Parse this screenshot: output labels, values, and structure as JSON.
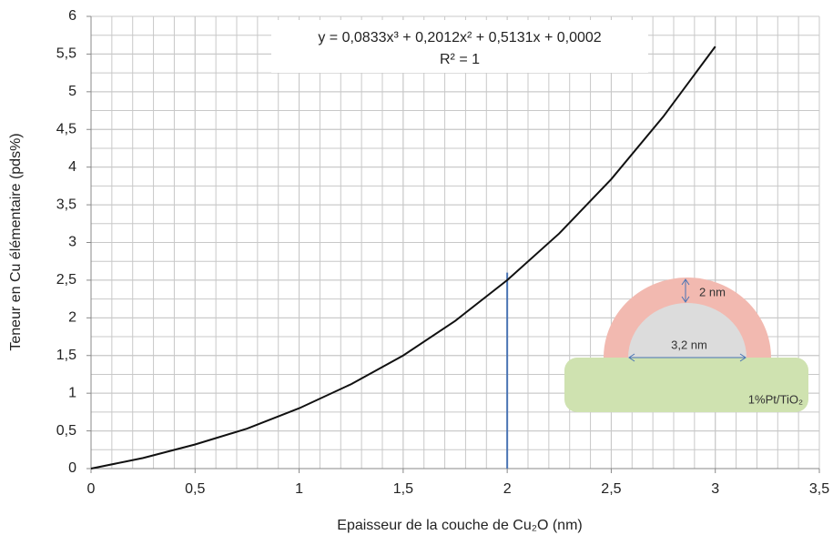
{
  "chart_data": {
    "type": "line",
    "xlabel": "Epaisseur de la couche de Cu₂O (nm)",
    "ylabel": "Teneur en Cu élémentaire (pds%)",
    "annotations": [
      "y = 0,0833x³ + 0,2012x² + 0,5131x + 0,0002",
      "R² = 1"
    ],
    "x": [
      0,
      0.25,
      0.5,
      0.75,
      1,
      1.25,
      1.5,
      1.75,
      2,
      2.25,
      2.5,
      2.75,
      3
    ],
    "series": [
      {
        "color": "#111111",
        "values": [
          0,
          0.14,
          0.32,
          0.53,
          0.8,
          1.12,
          1.5,
          1.96,
          2.5,
          3.12,
          3.84,
          4.67,
          5.6
        ]
      }
    ],
    "markers": [
      {
        "color": "#4a74b4",
        "x": [
          2,
          2
        ],
        "y": [
          0,
          2.6
        ]
      }
    ],
    "xlim": [
      0,
      3.5
    ],
    "ylim": [
      0,
      6
    ],
    "xticks": [
      0,
      {
        "value": 0.5,
        "label": "0,5"
      },
      1,
      {
        "value": 1.5,
        "label": "1,5"
      },
      2,
      {
        "value": 2.5,
        "label": "2,5"
      },
      3,
      {
        "value": 3.5,
        "label": "3,5"
      }
    ],
    "yticks": [
      0,
      {
        "value": 0.5,
        "label": "0,5"
      },
      1,
      {
        "value": 1.5,
        "label": "1,5"
      },
      2,
      {
        "value": 2.5,
        "label": "2,5"
      },
      3,
      {
        "value": 3.5,
        "label": "3,5"
      },
      4,
      {
        "value": 4.5,
        "label": "4,5"
      },
      5,
      {
        "value": 5.5,
        "label": "5,5"
      },
      6
    ],
    "grid": true,
    "minor_grid": {
      "x": 0.1,
      "y": 0.25
    },
    "inset": {
      "shell": "2 nm",
      "core": "3,2 nm",
      "support": "1%Pt/TiO₂"
    }
  }
}
